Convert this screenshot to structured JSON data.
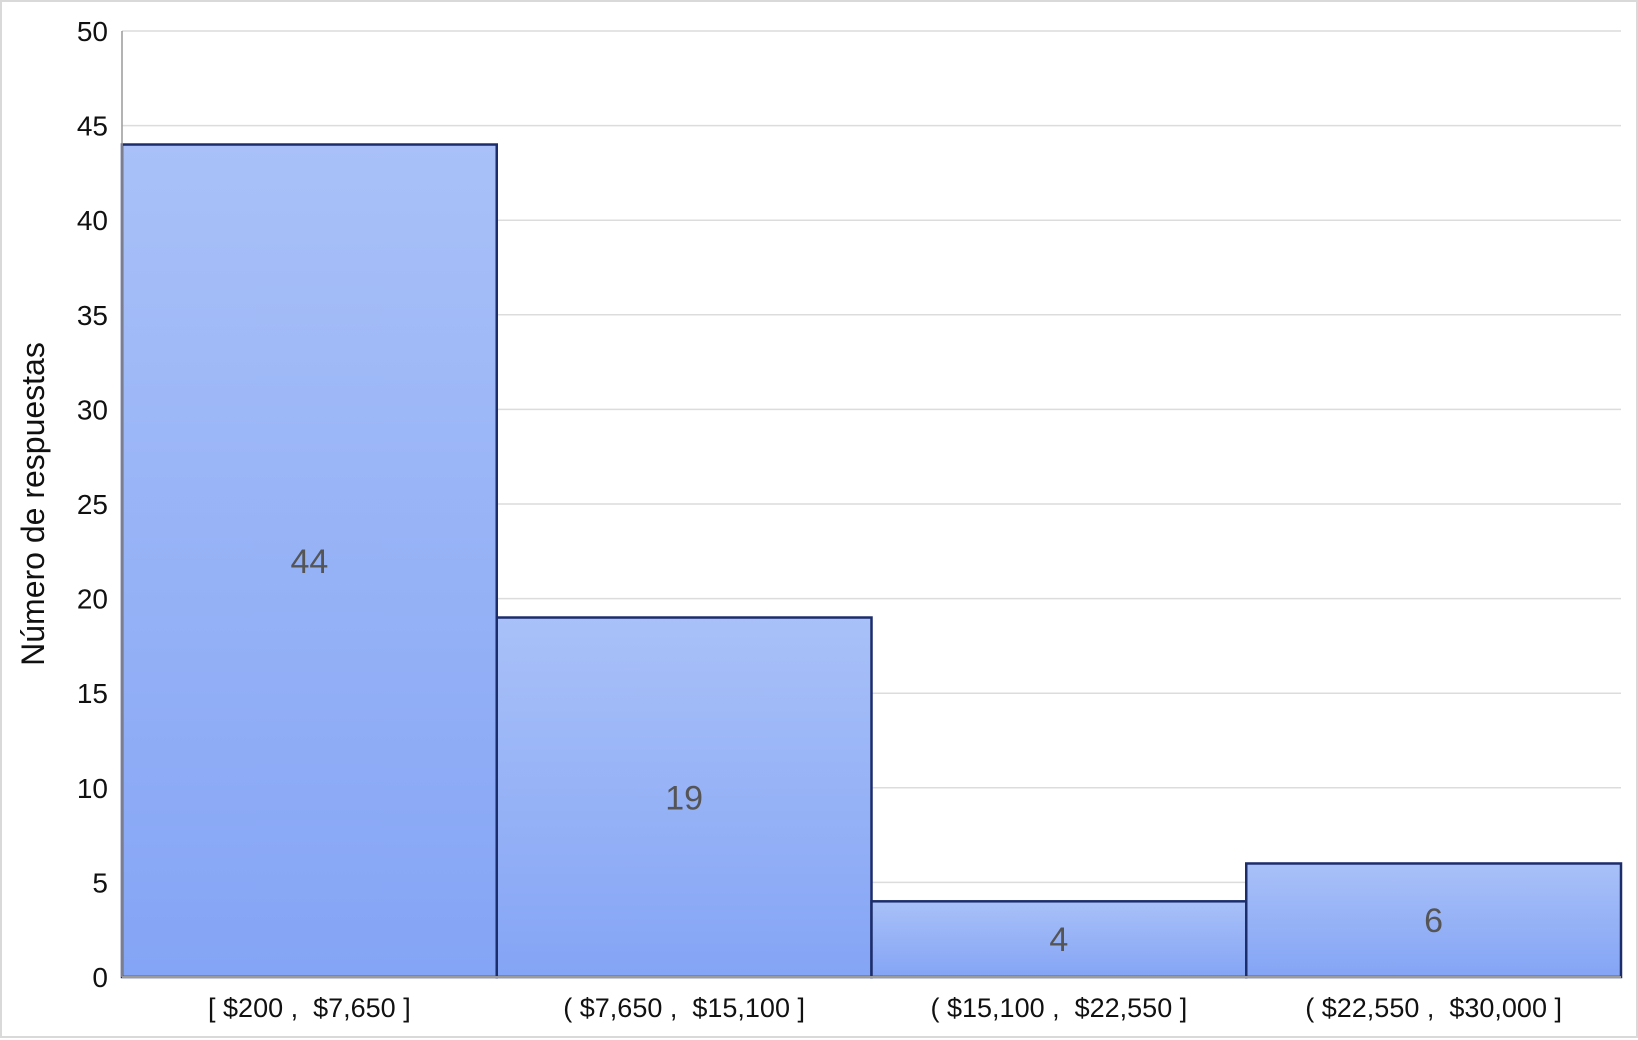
{
  "chart_data": {
    "type": "bar",
    "title": "",
    "xlabel": "",
    "ylabel": "Número de respuestas",
    "categories": [
      "[ $200 ,  $7,650 ]",
      "( $7,650 ,  $15,100 ]",
      "( $15,100 ,  $22,550 ]",
      "( $22,550 ,  $30,000 ]"
    ],
    "values": [
      44,
      19,
      4,
      6
    ],
    "data_labels": [
      "44",
      "19",
      "4",
      "6"
    ],
    "ylim": [
      0,
      50
    ],
    "yticks": [
      0,
      5,
      10,
      15,
      20,
      25,
      30,
      35,
      40,
      45,
      50
    ],
    "grid": true,
    "legend": "none",
    "bar_gap": 0,
    "colors": {
      "bar_top": "#a9c1f8",
      "bar_bottom": "#84a4f5",
      "bar_edge": "#1c2d6b",
      "grid": "#dcdcdc",
      "data_label": "#555555"
    }
  }
}
